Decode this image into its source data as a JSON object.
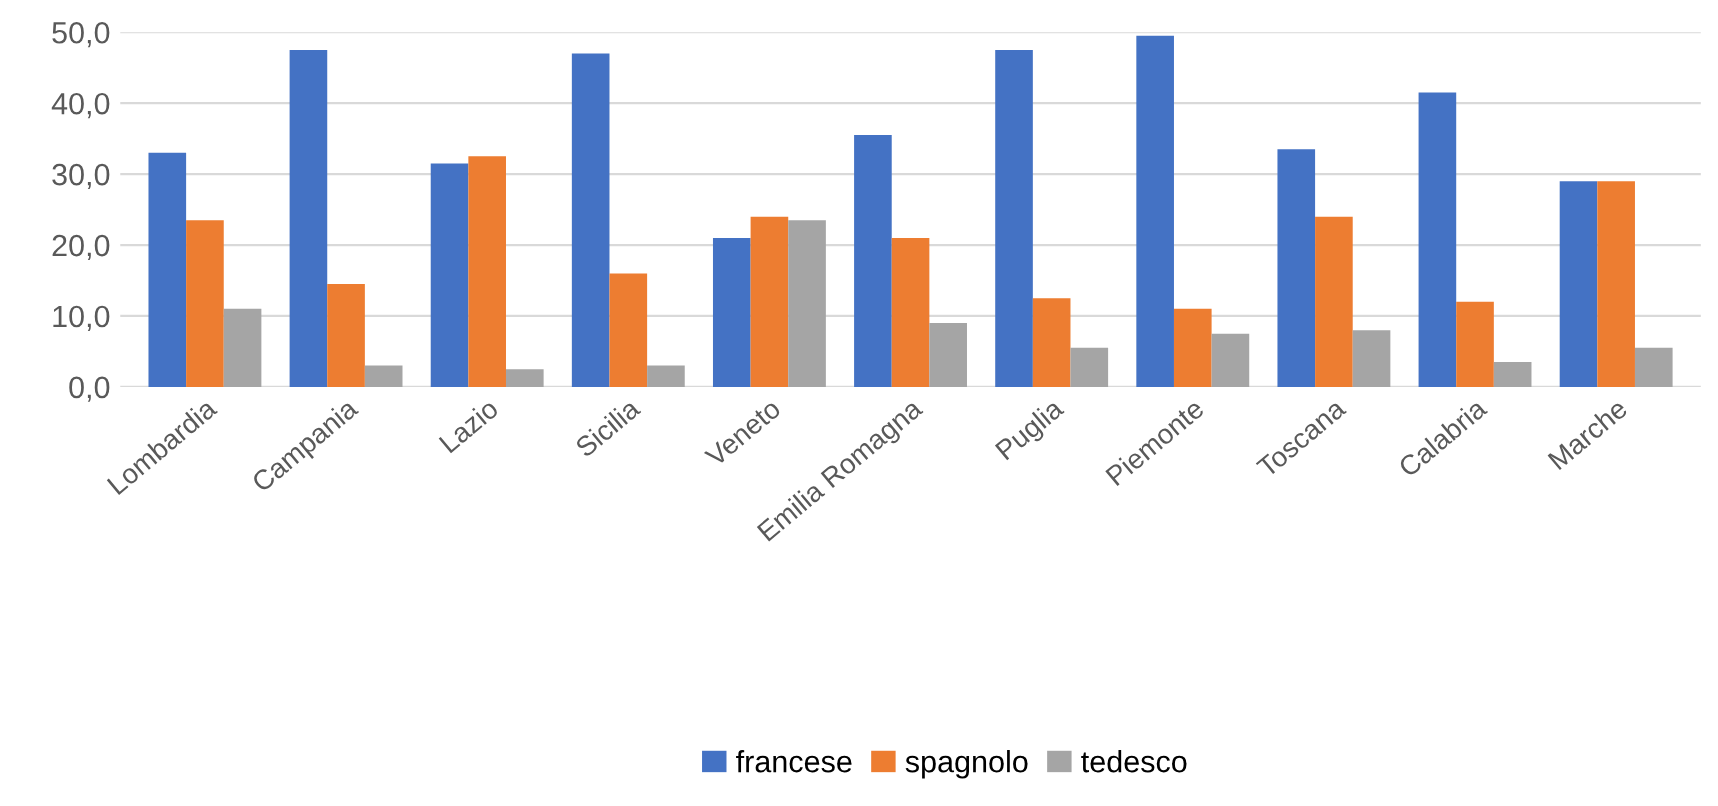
{
  "chart_data": {
    "type": "bar",
    "categories": [
      "Lombardia",
      "Campania",
      "Lazio",
      "Sicilia",
      "Veneto",
      "Emilia Romagna",
      "Puglia",
      "Piemonte",
      "Toscana",
      "Calabria",
      "Marche"
    ],
    "series": [
      {
        "name": "francese",
        "color": "#4472c4",
        "values": [
          33,
          47.5,
          31.5,
          47,
          21,
          35.5,
          47.5,
          49.5,
          33.5,
          41.5,
          29
        ]
      },
      {
        "name": "spagnolo",
        "color": "#ed7d31",
        "values": [
          23.5,
          14.5,
          32.5,
          16,
          24,
          21,
          12.5,
          11,
          24,
          12,
          29
        ]
      },
      {
        "name": "tedesco",
        "color": "#a5a5a5",
        "values": [
          11,
          3,
          2.5,
          3,
          23.5,
          9,
          5.5,
          7.5,
          8,
          3.5,
          5.5
        ]
      }
    ],
    "ylim": [
      0,
      50
    ],
    "yticks": [
      {
        "value": 0,
        "label": "0,0"
      },
      {
        "value": 10,
        "label": "10,0"
      },
      {
        "value": 20,
        "label": "20,0"
      },
      {
        "value": 30,
        "label": "30,0"
      },
      {
        "value": 40,
        "label": "40,0"
      },
      {
        "value": 50,
        "label": "50,0"
      }
    ],
    "grid": "y",
    "legend": "bottom"
  }
}
